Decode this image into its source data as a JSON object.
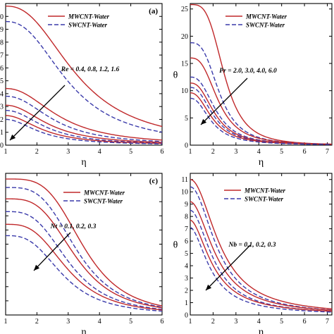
{
  "chart_data": [
    {
      "type": "line",
      "panel_label": "(a)",
      "xlabel": "η",
      "ylabel": "",
      "xlim": [
        1,
        6
      ],
      "ylim": [
        0,
        11
      ],
      "xticks": [
        "1",
        "2",
        "3",
        "4",
        "5",
        "6"
      ],
      "yticks": [
        "0",
        "1",
        "2",
        "3",
        "4",
        "5",
        "6",
        "7",
        "8",
        "9",
        "10"
      ],
      "annotation": "Re = 0.4, 0.8, 1.2, 1.6",
      "arrow_direction": "down-left",
      "series": [
        {
          "name": "MWCNT-Water",
          "style": "solid",
          "color": "#c0282a"
        },
        {
          "name": "SWCNT-Water",
          "style": "dashed",
          "color": "#3a3aaa"
        }
      ],
      "curves": [
        {
          "series": 0,
          "y0": 10.8,
          "d": 2.3,
          "n": 2.4
        },
        {
          "series": 1,
          "y0": 9.6,
          "d": 2.05,
          "n": 2.4
        },
        {
          "series": 0,
          "y0": 4.4,
          "d": 1.75,
          "n": 2.2
        },
        {
          "series": 1,
          "y0": 3.8,
          "d": 1.6,
          "n": 2.2
        },
        {
          "series": 0,
          "y0": 3.1,
          "d": 1.45,
          "n": 2.1
        },
        {
          "series": 1,
          "y0": 2.7,
          "d": 1.35,
          "n": 2.1
        },
        {
          "series": 0,
          "y0": 2.3,
          "d": 1.25,
          "n": 2.0
        },
        {
          "series": 1,
          "y0": 2.0,
          "d": 1.15,
          "n": 2.0
        }
      ]
    },
    {
      "type": "line",
      "panel_label": "",
      "xlabel": "η",
      "ylabel": "θ",
      "xlim": [
        1,
        7.2
      ],
      "ylim": [
        0,
        26
      ],
      "xticks": [
        "1",
        "2",
        "3",
        "4",
        "5",
        "6",
        "7"
      ],
      "yticks": [
        "0",
        "5",
        "10",
        "15",
        "20",
        "25"
      ],
      "annotation": "Pr = 2.0, 3.0, 4.0, 6.0",
      "arrow_direction": "down-left",
      "series": [
        {
          "name": "MWCNT-Water",
          "style": "solid",
          "color": "#c0282a"
        },
        {
          "name": "SWCNT-Water",
          "style": "dashed",
          "color": "#3a3aaa"
        }
      ],
      "curves": [
        {
          "series": 0,
          "y0": 25.8,
          "d": 1.5,
          "n": 3.5
        },
        {
          "series": 1,
          "y0": 18.8,
          "d": 1.3,
          "n": 3.0
        },
        {
          "series": 0,
          "y0": 16.0,
          "d": 1.25,
          "n": 2.8
        },
        {
          "series": 1,
          "y0": 12.5,
          "d": 1.15,
          "n": 2.6
        },
        {
          "series": 0,
          "y0": 11.4,
          "d": 1.1,
          "n": 2.5
        },
        {
          "series": 1,
          "y0": 10.6,
          "d": 1.05,
          "n": 2.4
        },
        {
          "series": 0,
          "y0": 9.6,
          "d": 1.0,
          "n": 2.3
        },
        {
          "series": 1,
          "y0": 8.6,
          "d": 0.95,
          "n": 2.3
        }
      ]
    },
    {
      "type": "line",
      "panel_label": "(c)",
      "xlabel": "η",
      "ylabel": "",
      "xlim": [
        1,
        6
      ],
      "ylim": [
        0,
        1
      ],
      "xticks": [
        "1",
        "2",
        "3",
        "4",
        "5",
        "6"
      ],
      "yticks": [],
      "annotation": "Nt = 0.1, 0.2, 0.3",
      "arrow_direction": "up-right",
      "series": [
        {
          "name": "MWCNT-Water",
          "style": "solid",
          "color": "#c0282a"
        },
        {
          "name": "SWCNT-Water",
          "style": "dashed",
          "color": "#3a3aaa"
        }
      ],
      "curves": [
        {
          "series": 0,
          "y0": 0.96,
          "d": 2.5,
          "n": 3.8
        },
        {
          "series": 1,
          "y0": 0.9,
          "d": 2.3,
          "n": 3.5
        },
        {
          "series": 0,
          "y0": 0.82,
          "d": 2.25,
          "n": 3.4
        },
        {
          "series": 1,
          "y0": 0.73,
          "d": 2.05,
          "n": 3.2
        },
        {
          "series": 0,
          "y0": 0.64,
          "d": 2.0,
          "n": 3.1
        },
        {
          "series": 1,
          "y0": 0.56,
          "d": 1.85,
          "n": 3.0
        }
      ]
    },
    {
      "type": "line",
      "panel_label": "",
      "xlabel": "η",
      "ylabel": "θ",
      "xlim": [
        1,
        7.2
      ],
      "ylim": [
        0,
        11.5
      ],
      "xticks": [
        "1",
        "2",
        "3",
        "4",
        "5",
        "6",
        "7"
      ],
      "yticks": [
        "0",
        "1",
        "2",
        "3",
        "4",
        "5",
        "6",
        "7",
        "8",
        "9",
        "10",
        "11"
      ],
      "annotation": "Nb = 0.1, 0.2, 0.3",
      "arrow_direction": "up-right",
      "series": [
        {
          "name": "MWCNT-Water",
          "style": "solid",
          "color": "#c0282a"
        },
        {
          "name": "SWCNT-Water",
          "style": "dashed",
          "color": "#3a3aaa"
        }
      ],
      "curves": [
        {
          "series": 0,
          "y0": 11.0,
          "d": 1.35,
          "n": 2.0
        },
        {
          "series": 1,
          "y0": 10.4,
          "d": 1.25,
          "n": 2.0
        },
        {
          "series": 0,
          "y0": 9.2,
          "d": 1.2,
          "n": 1.9
        },
        {
          "series": 1,
          "y0": 8.5,
          "d": 1.1,
          "n": 1.9
        },
        {
          "series": 0,
          "y0": 7.7,
          "d": 1.05,
          "n": 1.8
        },
        {
          "series": 1,
          "y0": 7.1,
          "d": 0.95,
          "n": 1.8
        }
      ]
    }
  ]
}
